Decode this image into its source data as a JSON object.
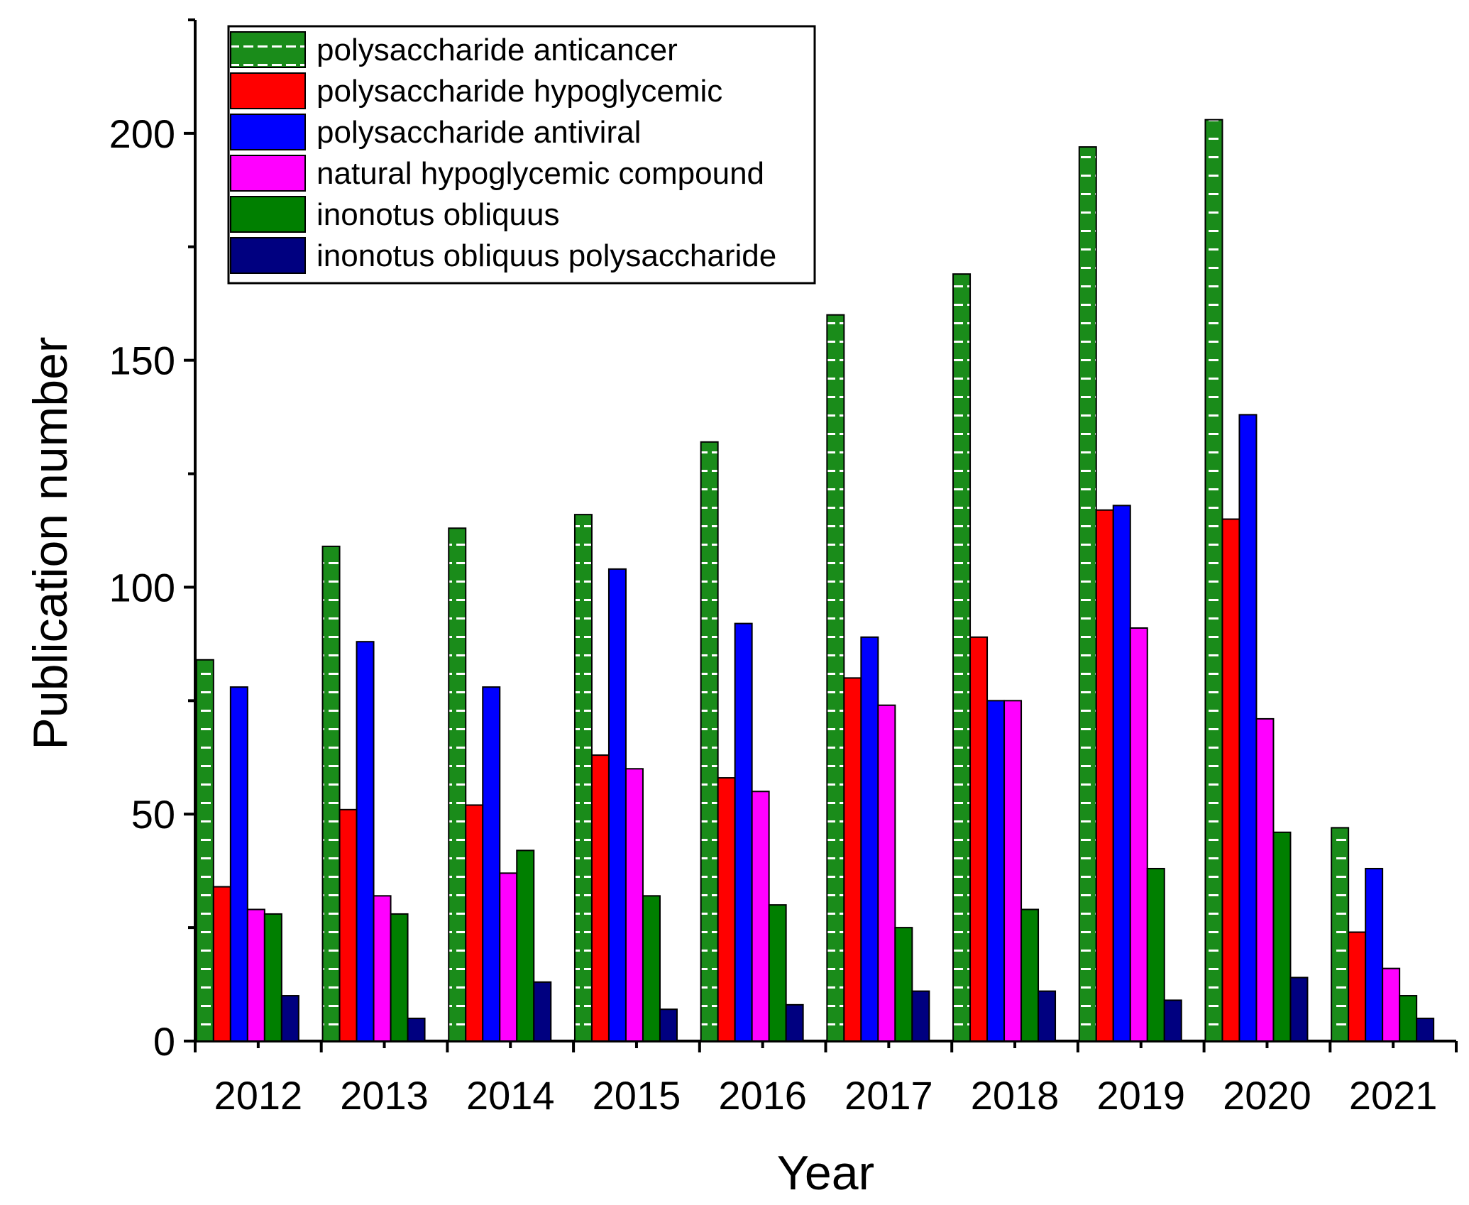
{
  "chart_data": {
    "type": "bar",
    "title": "",
    "xlabel": "Year",
    "ylabel": "Publication number",
    "ylim": [
      0,
      225
    ],
    "yticks": [
      0,
      50,
      100,
      150,
      200
    ],
    "grid": false,
    "legend_position": "top-left",
    "categories": [
      "2012",
      "2013",
      "2014",
      "2015",
      "2016",
      "2017",
      "2018",
      "2019",
      "2020",
      "2021"
    ],
    "series": [
      {
        "name": "polysaccharide anticancer",
        "color": "#1a8c1a",
        "pattern": "hatched-horizontal-white",
        "values": [
          84,
          109,
          113,
          116,
          132,
          160,
          169,
          197,
          203,
          47
        ]
      },
      {
        "name": "polysaccharide hypoglycemic",
        "color": "#ff0000",
        "values": [
          34,
          51,
          52,
          63,
          58,
          80,
          89,
          117,
          115,
          24
        ]
      },
      {
        "name": "polysaccharide antiviral",
        "color": "#0000ff",
        "values": [
          78,
          88,
          78,
          104,
          92,
          89,
          75,
          118,
          138,
          38
        ]
      },
      {
        "name": "natural hypoglycemic compound",
        "color": "#ff00ff",
        "values": [
          29,
          32,
          37,
          60,
          55,
          74,
          75,
          91,
          71,
          16
        ]
      },
      {
        "name": "inonotus obliquus",
        "color": "#007f00",
        "values": [
          28,
          28,
          42,
          32,
          30,
          25,
          29,
          38,
          46,
          10
        ]
      },
      {
        "name": "inonotus obliquus polysaccharide",
        "color": "#000080",
        "values": [
          10,
          5,
          13,
          7,
          8,
          11,
          11,
          9,
          14,
          5
        ]
      }
    ]
  }
}
